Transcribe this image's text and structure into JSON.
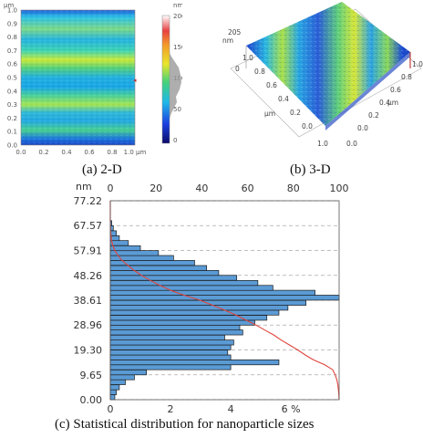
{
  "panel_a": {
    "caption": "(a) 2-D",
    "unit_label": "µm",
    "y_ticks": [
      "1.0",
      "0.9",
      "0.8",
      "0.7",
      "0.6",
      "0.5",
      "0.4",
      "0.3",
      "0.2",
      "0.1",
      "0.0"
    ],
    "x_ticks": [
      "0.0",
      "0.2",
      "0.4",
      "0.6",
      "0.8",
      "1.0 µm"
    ],
    "colorbar_unit": "nm",
    "colorbar_ticks": [
      "200",
      "150",
      "100",
      "50",
      "0"
    ]
  },
  "panel_b": {
    "caption": "(b) 3-D",
    "z_unit": "nm",
    "z_value": "205",
    "z_zero": "0",
    "left_axis_ticks": [
      "1.0",
      "0.8",
      "0.6",
      "0.4",
      "0.2",
      "0.0"
    ],
    "left_axis_unit": "µm",
    "bottom_left_tick": "1.0",
    "bottom_right_tick": "0.0",
    "right_axis_ticks": [
      "1.0",
      "0.8",
      "0.6",
      "0.4",
      "0.2",
      "0.0"
    ],
    "right_axis_unit": "µm"
  },
  "panel_c": {
    "caption": "(c) Statistical distribution for nanoparticle sizes"
  },
  "chart_data": {
    "type": "bar",
    "orientation": "horizontal",
    "y_unit": "nm",
    "y_ticks": [
      "77.22",
      "67.57",
      "57.91",
      "48.26",
      "38.61",
      "28.96",
      "19.30",
      "9.65",
      "0.00"
    ],
    "top_axis_ticks": [
      "0",
      "20",
      "40",
      "60",
      "80",
      "100"
    ],
    "bottom_axis_ticks": [
      "0",
      "2",
      "4",
      "6 %"
    ],
    "ylim": [
      0,
      77.22
    ],
    "xlim": [
      0,
      7.6
    ],
    "bins_nm": [
      0.97,
      2.9,
      4.8,
      6.8,
      8.7,
      10.6,
      12.6,
      14.5,
      16.4,
      18.3,
      20.3,
      22.2,
      24.1,
      26.1,
      28.0,
      29.9,
      31.8,
      33.8,
      35.7,
      37.6,
      39.6,
      41.5,
      43.4,
      45.3,
      47.3,
      49.2,
      51.1,
      53.1,
      55.0,
      56.9,
      58.8,
      60.8,
      62.7,
      64.6,
      66.6,
      68.5,
      70.4,
      72.3,
      74.3,
      76.2
    ],
    "values_percent": [
      0.15,
      0.2,
      0.3,
      0.5,
      0.8,
      1.2,
      4.0,
      5.6,
      4.0,
      3.9,
      4.0,
      4.1,
      3.8,
      4.4,
      4.3,
      4.8,
      5.2,
      5.6,
      5.9,
      6.5,
      7.6,
      6.8,
      5.4,
      4.9,
      4.2,
      3.6,
      3.2,
      2.8,
      2.1,
      1.6,
      1.0,
      0.6,
      0.3,
      0.2,
      0.1,
      0.05,
      0,
      0,
      0,
      0
    ],
    "cumulative_color": "#e0443c",
    "bar_color": "#5b9bd5",
    "grid": "dashed horizontal"
  }
}
